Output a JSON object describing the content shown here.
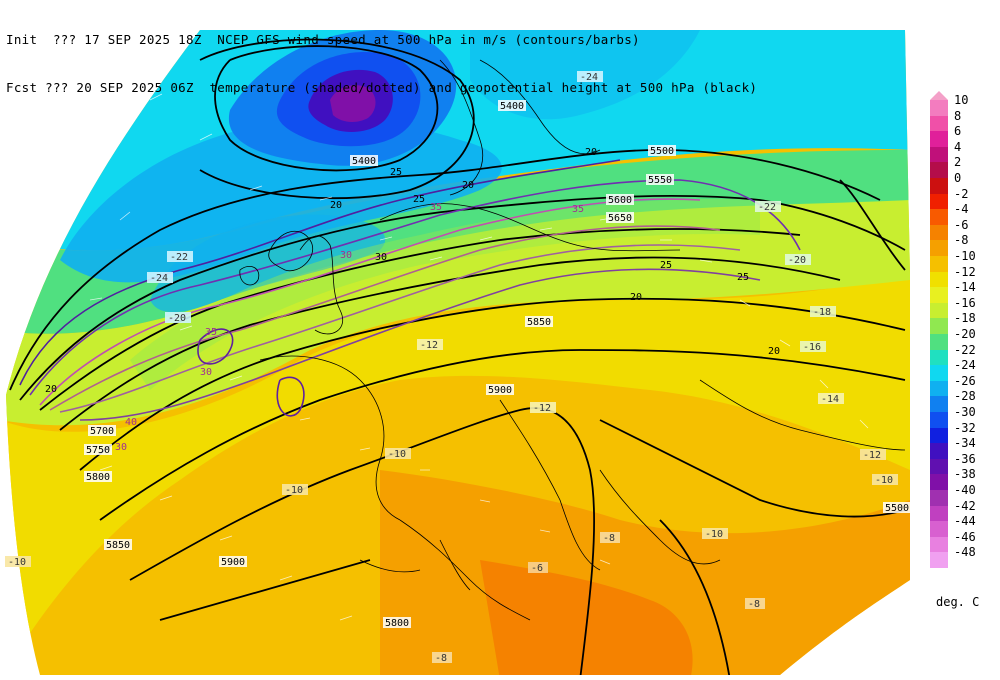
{
  "header": {
    "line1": "Init  ??? 17 SEP 2025 18Z  NCEP GFS wind speed at 500 hPa in m/s (contours/barbs)",
    "line2": "Fcst ??? 20 SEP 2025 06Z  temperature (shaded/dotted) and geopotential height at 500 hPa (black)"
  },
  "colorbar": {
    "units": "deg. C",
    "levels": [
      {
        "label": "10",
        "color": "#f37cbf"
      },
      {
        "label": "8",
        "color": "#f050a8"
      },
      {
        "label": "6",
        "color": "#e0209a"
      },
      {
        "label": "4",
        "color": "#c0107a"
      },
      {
        "label": "2",
        "color": "#b40d4a"
      },
      {
        "label": "0",
        "color": "#cc1010"
      },
      {
        "label": "-2",
        "color": "#f02000"
      },
      {
        "label": "-4",
        "color": "#f85a00"
      },
      {
        "label": "-6",
        "color": "#f58200"
      },
      {
        "label": "-8",
        "color": "#f5a000"
      },
      {
        "label": "-10",
        "color": "#f5c000"
      },
      {
        "label": "-12",
        "color": "#f0e000"
      },
      {
        "label": "-14",
        "color": "#e8f020"
      },
      {
        "label": "-16",
        "color": "#c8ee30"
      },
      {
        "label": "-18",
        "color": "#90e850"
      },
      {
        "label": "-20",
        "color": "#50e080"
      },
      {
        "label": "-22",
        "color": "#20e0c0"
      },
      {
        "label": "-24",
        "color": "#10d8f0"
      },
      {
        "label": "-26",
        "color": "#10b0f0"
      },
      {
        "label": "-28",
        "color": "#1080f0"
      },
      {
        "label": "-30",
        "color": "#1050f0"
      },
      {
        "label": "-32",
        "color": "#1020e0"
      },
      {
        "label": "-34",
        "color": "#4010c0"
      },
      {
        "label": "-36",
        "color": "#6010b0"
      },
      {
        "label": "-38",
        "color": "#8010a8"
      },
      {
        "label": "-40",
        "color": "#a030b0"
      },
      {
        "label": "-42",
        "color": "#c040c0"
      },
      {
        "label": "-44",
        "color": "#d860d0"
      },
      {
        "label": "-46",
        "color": "#e880e0"
      },
      {
        "label": "-48",
        "color": "#f0a0f0"
      }
    ]
  },
  "map_labels": {
    "temperature": [
      "-24",
      "-22",
      "-24",
      "-20",
      "-22",
      "-20",
      "-18",
      "-16",
      "-14",
      "-12",
      "-12",
      "-10",
      "-10",
      "-10",
      "-10",
      "-8",
      "-8",
      "-8",
      "-6",
      "-12",
      "-10"
    ],
    "height": [
      "5400",
      "5400",
      "5500",
      "5550",
      "5600",
      "5650",
      "5700",
      "5750",
      "5800",
      "5850",
      "5850",
      "5900",
      "5900",
      "5800",
      "5500"
    ],
    "wind": [
      "20",
      "25",
      "30",
      "35",
      "40",
      "30",
      "25",
      "20",
      "20",
      "30",
      "35",
      "25",
      "20",
      "20",
      "25",
      "30",
      "35",
      "20"
    ]
  }
}
